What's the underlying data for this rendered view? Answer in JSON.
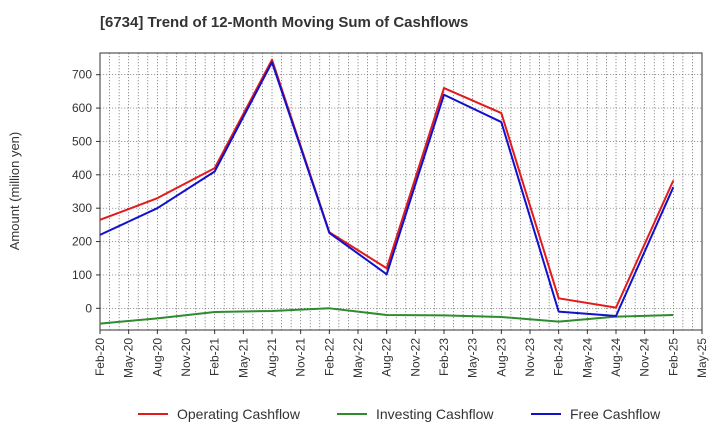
{
  "chart_data": {
    "type": "line",
    "title": "[6734]  Trend of 12-Month Moving Sum of Cashflows",
    "ylabel": "Amount (million yen)",
    "xlabel": "",
    "ylim": [
      -65,
      765
    ],
    "yticks": [
      0,
      100,
      200,
      300,
      400,
      500,
      600,
      700
    ],
    "categories": [
      "Feb-20",
      "May-20",
      "Aug-20",
      "Nov-20",
      "Feb-21",
      "May-21",
      "Aug-21",
      "Nov-21",
      "Feb-22",
      "May-22",
      "Aug-22",
      "Nov-22",
      "Feb-23",
      "May-23",
      "Aug-23",
      "Nov-23",
      "Feb-24",
      "May-24",
      "Aug-24",
      "Nov-24",
      "Feb-25",
      "May-25"
    ],
    "grid": true,
    "legend_position": "bottom",
    "series": [
      {
        "name": "Operating Cashflow",
        "color": "#e31a1c",
        "values": [
          265,
          null,
          330,
          null,
          420,
          null,
          745,
          null,
          228,
          null,
          120,
          null,
          660,
          null,
          585,
          null,
          30,
          null,
          2,
          null,
          383,
          null
        ]
      },
      {
        "name": "Investing Cashflow",
        "color": "#2e8b2e",
        "values": [
          -46,
          null,
          -30,
          null,
          -11,
          null,
          -8,
          null,
          0,
          null,
          -20,
          null,
          -21,
          null,
          -26,
          null,
          -40,
          null,
          -25,
          null,
          -20,
          null
        ]
      },
      {
        "name": "Free Cashflow",
        "color": "#1111cc",
        "values": [
          220,
          null,
          300,
          null,
          410,
          null,
          737,
          null,
          226,
          null,
          102,
          null,
          640,
          null,
          558,
          null,
          -10,
          null,
          -23,
          null,
          363,
          null
        ]
      }
    ]
  }
}
